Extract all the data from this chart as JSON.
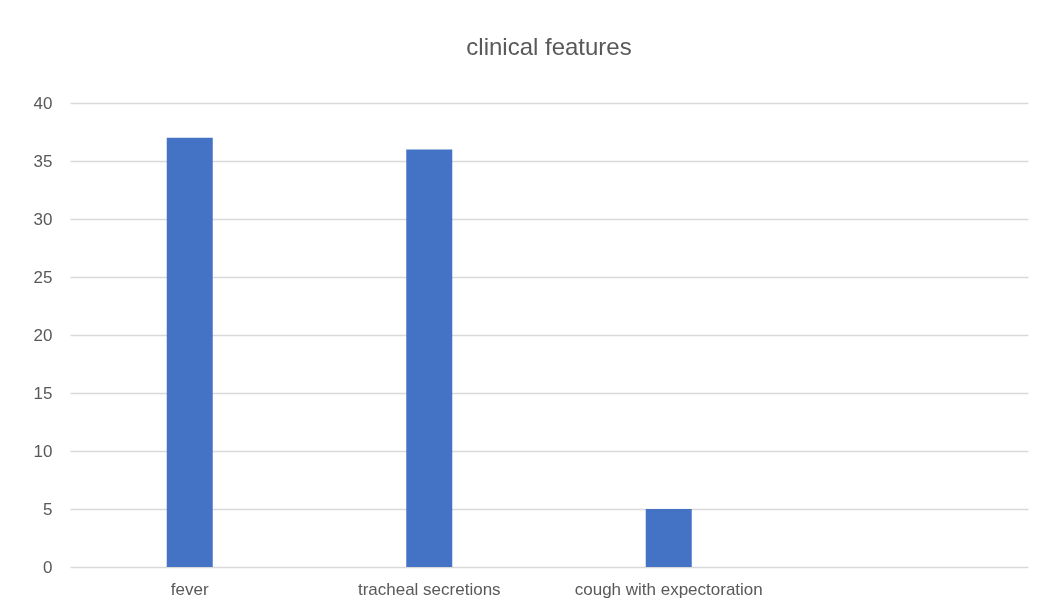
{
  "chart_data": {
    "type": "bar",
    "title": "clinical features",
    "categories": [
      "fever",
      "tracheal secretions",
      "cough with expectoration",
      null
    ],
    "values": [
      37,
      36,
      5,
      null
    ],
    "color": "#4472c4",
    "ylim": [
      0,
      40
    ],
    "yticks": [
      0,
      5,
      10,
      15,
      20,
      25,
      30,
      35,
      40
    ],
    "grid": "y"
  }
}
